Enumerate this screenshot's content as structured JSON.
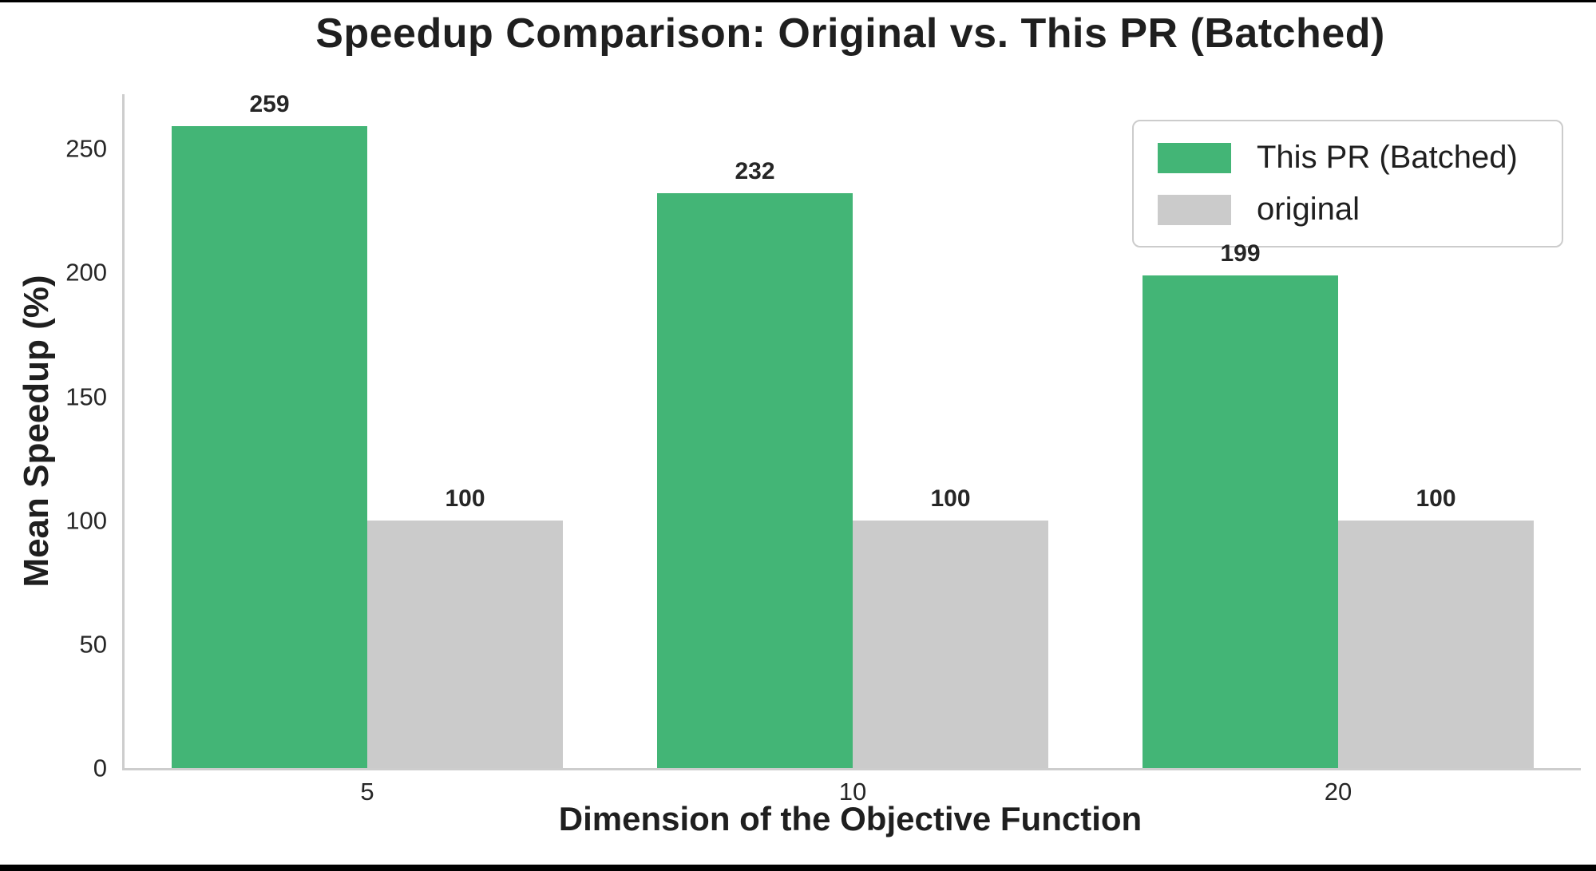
{
  "chart_data": {
    "type": "bar",
    "title": "Speedup Comparison: Original vs. This PR (Batched)",
    "xlabel": "Dimension of the Objective Function",
    "ylabel": "Mean Speedup (%)",
    "categories": [
      "5",
      "10",
      "20"
    ],
    "series": [
      {
        "name": "This PR (Batched)",
        "color": "#43b576",
        "values": [
          259,
          232,
          199
        ]
      },
      {
        "name": "original",
        "color": "#cbcbcb",
        "values": [
          100,
          100,
          100
        ]
      }
    ],
    "bar_value_labels": [
      [
        "259",
        "232",
        "199"
      ],
      [
        "100",
        "100",
        "100"
      ]
    ],
    "ylim": [
      0,
      272
    ],
    "yticks": [
      0,
      50,
      100,
      150,
      200,
      250
    ],
    "grid": false,
    "legend_position": "upper right",
    "spine_color": "#cdcdcd",
    "text_color": "#262626"
  }
}
